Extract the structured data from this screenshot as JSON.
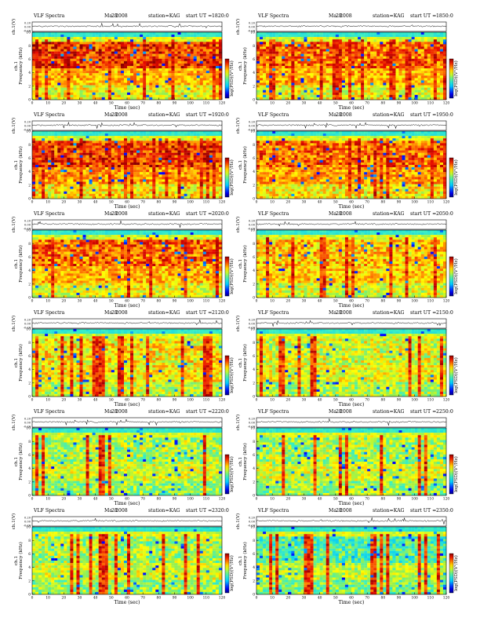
{
  "chart_data": {
    "type": "heatmap",
    "header": {
      "left": "VLF Spectra",
      "date_prefix": "Ma",
      "date_suffix": "2008",
      "date_overlap": "28",
      "station": "station=KAG",
      "start_prefix": "start UT ="
    },
    "wave_ylabel": "ch.1(V)",
    "ylabel": "Frequency (kHz)",
    "channel_label": "ch.1",
    "xlabel": "Time (sec)",
    "colorbar_label": "log(PSD)(V²/Hz)",
    "xlim": [
      0,
      120
    ],
    "ylim_khz": [
      0,
      10
    ],
    "xticks": [
      "0",
      "10",
      "20",
      "30",
      "40",
      "50",
      "60",
      "70",
      "80",
      "90",
      "100",
      "110",
      "120"
    ],
    "yticks": [
      "0",
      "2",
      "4",
      "6",
      "8",
      "10"
    ],
    "waveform_ticks": [
      "0.20",
      "0.00",
      "-0.20"
    ],
    "panels": [
      {
        "start_ut": "1820:0",
        "band_intensity": 0.85,
        "noise_level": 0.35
      },
      {
        "start_ut": "1850:0",
        "band_intensity": 0.8,
        "noise_level": 0.35
      },
      {
        "start_ut": "1920:0",
        "band_intensity": 0.85,
        "noise_level": 0.4
      },
      {
        "start_ut": "1950:0",
        "band_intensity": 0.8,
        "noise_level": 0.4
      },
      {
        "start_ut": "2020:0",
        "band_intensity": 0.8,
        "noise_level": 0.35
      },
      {
        "start_ut": "2050:0",
        "band_intensity": 0.7,
        "noise_level": 0.3
      },
      {
        "start_ut": "2120:0",
        "band_intensity": 0.65,
        "noise_level": 0.25
      },
      {
        "start_ut": "2150:0",
        "band_intensity": 0.6,
        "noise_level": 0.2
      },
      {
        "start_ut": "2220:0",
        "band_intensity": 0.55,
        "noise_level": 0.15
      },
      {
        "start_ut": "2250:0",
        "band_intensity": 0.55,
        "noise_level": 0.15
      },
      {
        "start_ut": "2320:0",
        "band_intensity": 0.55,
        "noise_level": 0.15
      },
      {
        "start_ut": "2350:0",
        "band_intensity": 0.45,
        "noise_level": 0.1
      }
    ]
  }
}
